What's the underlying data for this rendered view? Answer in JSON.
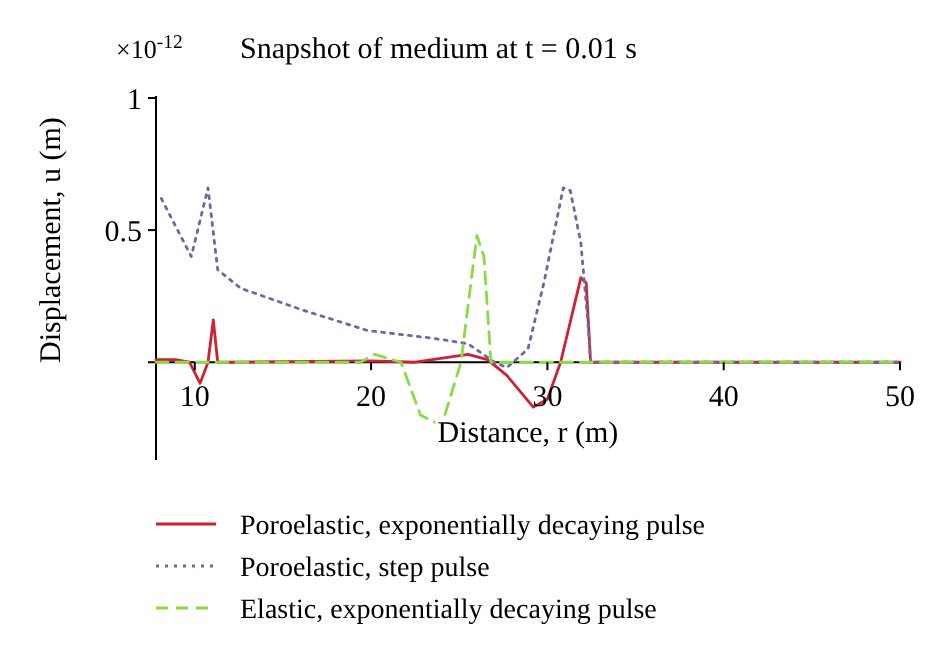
{
  "chart_data": {
    "type": "line",
    "title": "Snapshot of medium at t = 0.01 s",
    "xlabel": "Distance, r (m)",
    "ylabel": "Displacement, u (m)",
    "annotations": [
      "×10$^{-12}$"
    ],
    "xlim": [
      7.8,
      50
    ],
    "xticks": [
      10,
      20,
      30,
      40,
      50
    ],
    "ylim": [
      -0.37,
      1
    ],
    "yticks": [
      {
        "value": 0,
        "label": null
      },
      0.5,
      1
    ],
    "grid": false,
    "legend": "bottom",
    "marker": "none",
    "series": [
      {
        "name": "Poroelastic, exponentially decaying pulse",
        "color": "#cc2233",
        "line_style": "solid",
        "x": [
          7.8,
          8.9,
          9.7,
          10.3,
          10.75,
          11.05,
          11.3,
          12,
          20,
          22.5,
          25.5,
          26.6,
          27.7,
          29.2,
          30,
          30.75,
          31.9,
          32.2,
          32.45,
          33,
          50
        ],
        "values": [
          0.01,
          0.01,
          0,
          -0.08,
          0,
          0.16,
          0,
          0,
          0.005,
          0,
          0.03,
          0.01,
          -0.05,
          -0.17,
          -0.14,
          0,
          0.32,
          0.3,
          0,
          0,
          0
        ]
      },
      {
        "name": "Poroelastic, step pulse",
        "color": "#6a6aa0",
        "line_style": "dotted",
        "x": [
          8.1,
          9.8,
          10.75,
          11.3,
          12.6,
          16,
          19.8,
          23.6,
          25.5,
          27,
          27.7,
          28.9,
          29.8,
          30.9,
          31.3,
          31.9,
          32.3,
          32.45,
          33,
          50
        ],
        "values": [
          0.62,
          0.4,
          0.66,
          0.35,
          0.28,
          0.2,
          0.12,
          0.09,
          0.07,
          0,
          -0.02,
          0.05,
          0.3,
          0.66,
          0.65,
          0.45,
          0.15,
          0,
          0,
          0
        ]
      },
      {
        "name": "Elastic, exponentially decaying pulse",
        "color": "#88dd44",
        "line_style": "dashed",
        "x": [
          7.8,
          19.4,
          20.2,
          21.7,
          22.8,
          24,
          25.1,
          26,
          26.4,
          26.8,
          50
        ],
        "values": [
          0,
          0,
          0.03,
          0,
          -0.2,
          -0.24,
          0,
          0.48,
          0.4,
          0,
          0
        ]
      }
    ]
  }
}
